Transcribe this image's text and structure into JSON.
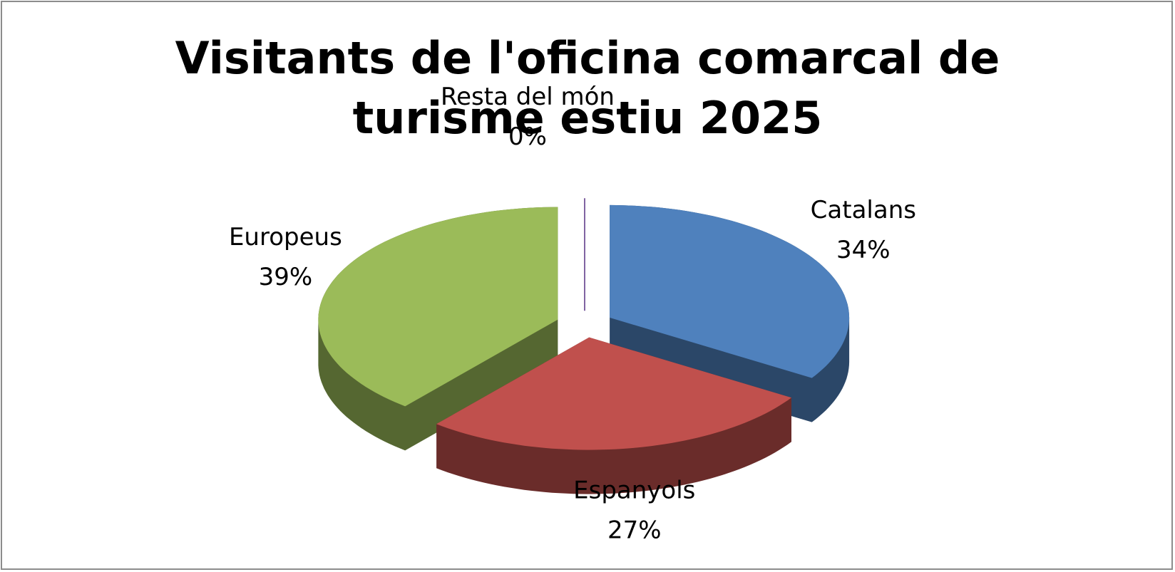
{
  "chart_data": {
    "type": "pie3d",
    "title": "Visitants de l'oficina comarcal de turisme estiu 2025",
    "categories": [
      "Catalans",
      "Espanyols",
      "Europeus",
      "Resta del món"
    ],
    "values": [
      34,
      27,
      39,
      0
    ],
    "value_labels": [
      "34%",
      "27%",
      "39%",
      "0%"
    ],
    "colors": [
      "#4f81bd",
      "#c0504d",
      "#9bbb59",
      "#8064a2"
    ]
  }
}
